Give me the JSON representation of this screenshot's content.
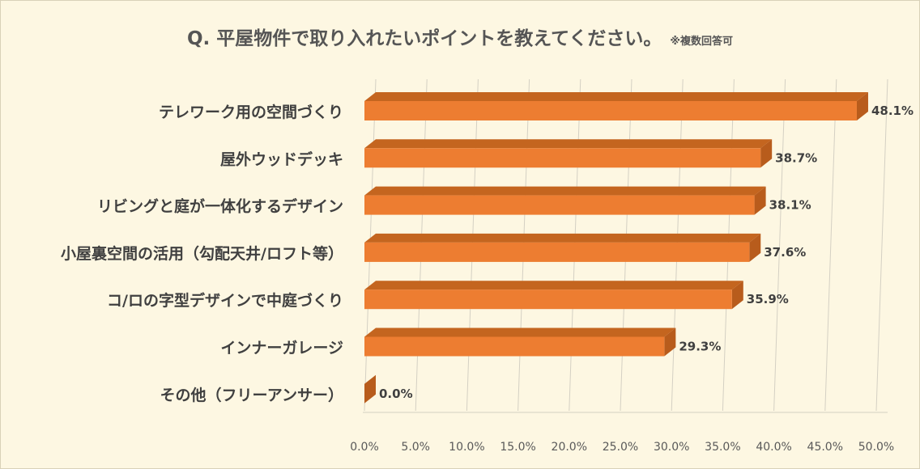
{
  "chart_data": {
    "type": "bar",
    "orientation": "horizontal",
    "title": "Q. 平屋物件で取り入れたいポイントを教えてください。",
    "note": "※複数回答可",
    "categories": [
      "テレワーク用の空間づくり",
      "屋外ウッドデッキ",
      "リビングと庭が一体化するデザイン",
      "小屋裏空間の活用（勾配天井/ロフト等）",
      "コ/ロの字型デザインで中庭づくり",
      "インナーガレージ",
      "その他（フリーアンサー）"
    ],
    "values": [
      48.1,
      38.7,
      38.1,
      37.6,
      35.9,
      29.3,
      0.0
    ],
    "value_labels": [
      "48.1%",
      "38.7%",
      "38.1%",
      "37.6%",
      "35.9%",
      "29.3%",
      "0.0%"
    ],
    "xlim": [
      0,
      50
    ],
    "x_ticks": [
      "0.0%",
      "5.0%",
      "10.0%",
      "15.0%",
      "20.0%",
      "25.0%",
      "30.0%",
      "35.0%",
      "40.0%",
      "45.0%",
      "50.0%"
    ],
    "grid": true,
    "bar_color": "#ed7d31",
    "bar_side_color": "#b85c1c"
  }
}
